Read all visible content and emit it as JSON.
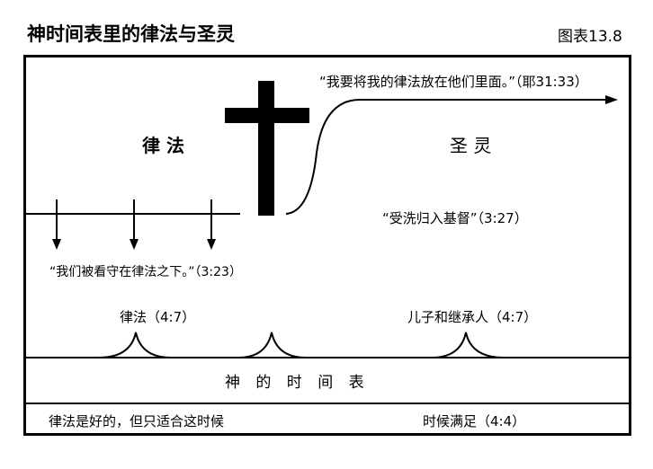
{
  "title": "神时间表里的律法与圣灵",
  "figure_label": "图表13.8",
  "law_heading": "律 法",
  "spirit_heading": "圣 灵",
  "quote_jer": "“我要将我的律法放在他们里面。”（耶31:33）",
  "quote_baptized": "“受洗归入基督”（3:27）",
  "quote_guarded": "“我们被看守在律法之下。”（3:23）",
  "brace_law": "律法（4:7）",
  "brace_heirs": "儿子和继承人（4:7）",
  "timeline": "神 的 时 间 表",
  "bottom_left": "律法是好的，但只适合这时候",
  "bottom_right": "时候满足（4:4）"
}
